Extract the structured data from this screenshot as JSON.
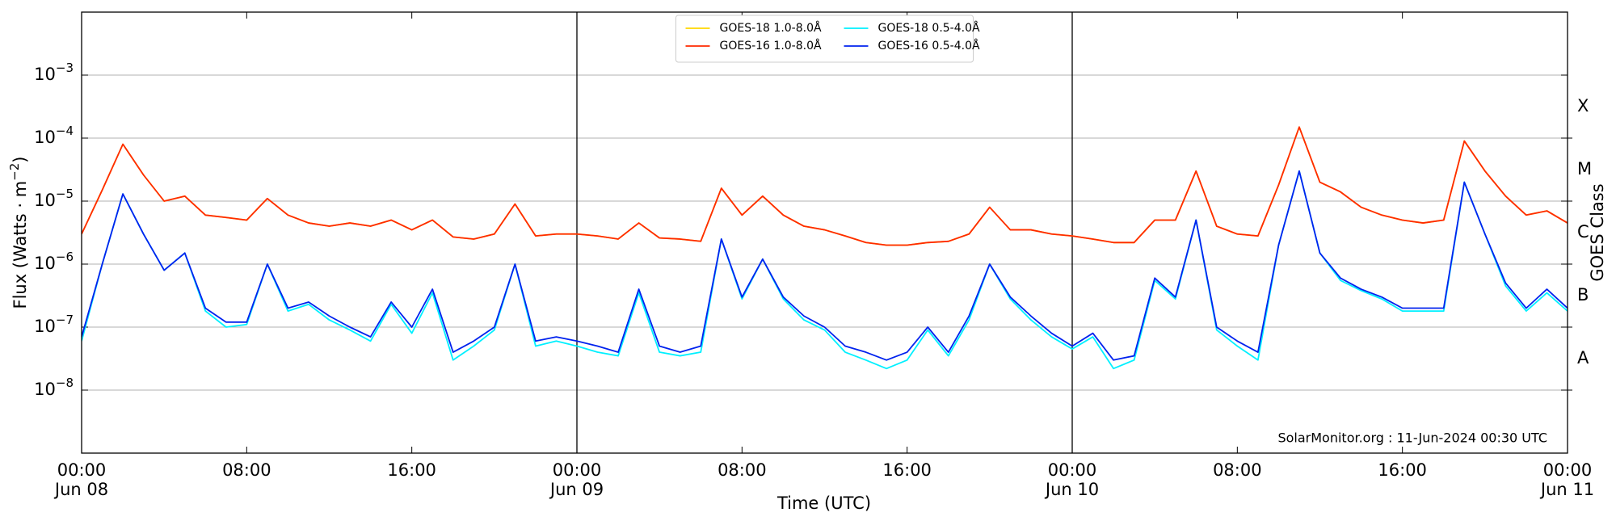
{
  "chart_data": {
    "type": "line",
    "ylabel": {
      "text": "Flux (Watts · m",
      "exponent": "−2",
      "suffix": ")"
    },
    "xlabel": "Time (UTC)",
    "y2label": "GOES Class",
    "annotation": "SolarMonitor.org : 11-Jun-2024 00:30 UTC",
    "ylog": true,
    "grid": true,
    "legend_position": "upper center",
    "legend_columns": 2,
    "ylim": [
      1e-09,
      0.01
    ],
    "yticks": [
      {
        "value": 1e-08,
        "label": {
          "base": "10",
          "exponent": "−8"
        }
      },
      {
        "value": 1e-07,
        "label": {
          "base": "10",
          "exponent": "−7"
        }
      },
      {
        "value": 1e-06,
        "label": {
          "base": "10",
          "exponent": "−6"
        }
      },
      {
        "value": 1e-05,
        "label": {
          "base": "10",
          "exponent": "−5"
        }
      },
      {
        "value": 0.0001,
        "label": {
          "base": "10",
          "exponent": "−4"
        }
      },
      {
        "value": 0.001,
        "label": {
          "base": "10",
          "exponent": "−3"
        }
      }
    ],
    "y2lim": [
      1e-09,
      0.01
    ],
    "y2ticks": [
      {
        "value": 1e-08,
        "label": "A"
      },
      {
        "value": 1e-07,
        "label": "B"
      },
      {
        "value": 1e-06,
        "label": "C"
      },
      {
        "value": 1e-05,
        "label": "M"
      },
      {
        "value": 0.0001,
        "label": "X"
      }
    ],
    "xlim": [
      "Jun 08 00:00",
      "Jun 11 00:00"
    ],
    "xticks": [
      {
        "value": "Jun 08 00:00",
        "label": [
          "00:00",
          "Jun 08"
        ]
      },
      {
        "value": "Jun 08 08:00",
        "label": [
          "08:00"
        ]
      },
      {
        "value": "Jun 08 16:00",
        "label": [
          "16:00"
        ]
      },
      {
        "value": "Jun 09 00:00",
        "label": [
          "00:00",
          "Jun 09"
        ]
      },
      {
        "value": "Jun 09 08:00",
        "label": [
          "08:00"
        ]
      },
      {
        "value": "Jun 09 16:00",
        "label": [
          "16:00"
        ]
      },
      {
        "value": "Jun 10 00:00",
        "label": [
          "00:00",
          "Jun 10"
        ]
      },
      {
        "value": "Jun 10 08:00",
        "label": [
          "08:00"
        ]
      },
      {
        "value": "Jun 10 16:00",
        "label": [
          "16:00"
        ]
      },
      {
        "value": "Jun 11 00:00",
        "label": [
          "00:00",
          "Jun 11"
        ]
      }
    ],
    "x": [
      "Jun 08 00:00",
      "Jun 08 01:00",
      "Jun 08 02:00",
      "Jun 08 03:00",
      "Jun 08 04:00",
      "Jun 08 05:00",
      "Jun 08 06:00",
      "Jun 08 07:00",
      "Jun 08 08:00",
      "Jun 08 09:00",
      "Jun 08 10:00",
      "Jun 08 11:00",
      "Jun 08 12:00",
      "Jun 08 13:00",
      "Jun 08 14:00",
      "Jun 08 15:00",
      "Jun 08 16:00",
      "Jun 08 17:00",
      "Jun 08 18:00",
      "Jun 08 19:00",
      "Jun 08 20:00",
      "Jun 08 21:00",
      "Jun 08 22:00",
      "Jun 08 23:00",
      "Jun 09 00:00",
      "Jun 09 01:00",
      "Jun 09 02:00",
      "Jun 09 03:00",
      "Jun 09 04:00",
      "Jun 09 05:00",
      "Jun 09 06:00",
      "Jun 09 07:00",
      "Jun 09 08:00",
      "Jun 09 09:00",
      "Jun 09 10:00",
      "Jun 09 11:00",
      "Jun 09 12:00",
      "Jun 09 13:00",
      "Jun 09 14:00",
      "Jun 09 15:00",
      "Jun 09 16:00",
      "Jun 09 17:00",
      "Jun 09 18:00",
      "Jun 09 19:00",
      "Jun 09 20:00",
      "Jun 09 21:00",
      "Jun 09 22:00",
      "Jun 09 23:00",
      "Jun 10 00:00",
      "Jun 10 01:00",
      "Jun 10 02:00",
      "Jun 10 03:00",
      "Jun 10 04:00",
      "Jun 10 05:00",
      "Jun 10 06:00",
      "Jun 10 07:00",
      "Jun 10 08:00",
      "Jun 10 09:00",
      "Jun 10 10:00",
      "Jun 10 11:00",
      "Jun 10 12:00",
      "Jun 10 13:00",
      "Jun 10 14:00",
      "Jun 10 15:00",
      "Jun 10 16:00",
      "Jun 10 17:00",
      "Jun 10 18:00",
      "Jun 10 19:00",
      "Jun 10 20:00",
      "Jun 10 21:00",
      "Jun 10 22:00",
      "Jun 10 23:00",
      "Jun 11 00:00"
    ],
    "series": [
      {
        "name": "GOES-18 1.0-8.0Å",
        "color": "#ffd700",
        "values": [
          3e-06,
          1.5e-05,
          8e-05,
          2.6e-05,
          1e-05,
          1.2e-05,
          6e-06,
          5.5e-06,
          5e-06,
          1.1e-05,
          6e-06,
          4.5e-06,
          4e-06,
          4.5e-06,
          4e-06,
          5e-06,
          3.5e-06,
          5e-06,
          2.7e-06,
          2.5e-06,
          3e-06,
          9e-06,
          2.8e-06,
          3e-06,
          3e-06,
          2.8e-06,
          2.5e-06,
          4.5e-06,
          2.6e-06,
          2.5e-06,
          2.3e-06,
          1.6e-05,
          6e-06,
          1.2e-05,
          6e-06,
          4e-06,
          3.5e-06,
          2.8e-06,
          2.2e-06,
          2e-06,
          2e-06,
          2.2e-06,
          2.3e-06,
          3e-06,
          8e-06,
          3.5e-06,
          3.5e-06,
          3e-06,
          2.8e-06,
          2.5e-06,
          2.2e-06,
          2.2e-06,
          5e-06,
          5e-06,
          3e-05,
          4e-06,
          3e-06,
          2.8e-06,
          1.8e-05,
          0.00015,
          2e-05,
          1.4e-05,
          8e-06,
          6e-06,
          5e-06,
          4.5e-06,
          5e-06,
          9e-05,
          3e-05,
          1.2e-05,
          6e-06,
          7e-06,
          4.5e-06
        ]
      },
      {
        "name": "GOES-16 1.0-8.0Å",
        "color": "#ff2a00",
        "values": [
          3e-06,
          1.5e-05,
          8e-05,
          2.6e-05,
          1e-05,
          1.2e-05,
          6e-06,
          5.5e-06,
          5e-06,
          1.1e-05,
          6e-06,
          4.5e-06,
          4e-06,
          4.5e-06,
          4e-06,
          5e-06,
          3.5e-06,
          5e-06,
          2.7e-06,
          2.5e-06,
          3e-06,
          9e-06,
          2.8e-06,
          3e-06,
          3e-06,
          2.8e-06,
          2.5e-06,
          4.5e-06,
          2.6e-06,
          2.5e-06,
          2.3e-06,
          1.6e-05,
          6e-06,
          1.2e-05,
          6e-06,
          4e-06,
          3.5e-06,
          2.8e-06,
          2.2e-06,
          2e-06,
          2e-06,
          2.2e-06,
          2.3e-06,
          3e-06,
          8e-06,
          3.5e-06,
          3.5e-06,
          3e-06,
          2.8e-06,
          2.5e-06,
          2.2e-06,
          2.2e-06,
          5e-06,
          5e-06,
          3e-05,
          4e-06,
          3e-06,
          2.8e-06,
          1.8e-05,
          0.00015,
          2e-05,
          1.4e-05,
          8e-06,
          6e-06,
          5e-06,
          4.5e-06,
          5e-06,
          9e-05,
          3e-05,
          1.2e-05,
          6e-06,
          7e-06,
          4.5e-06
        ]
      },
      {
        "name": "GOES-18 0.5-4.0Å",
        "color": "#00f0ff",
        "values": [
          6e-08,
          1e-06,
          1.3e-05,
          3e-06,
          8e-07,
          1.5e-06,
          1.8e-07,
          1e-07,
          1.1e-07,
          1e-06,
          1.8e-07,
          2.3e-07,
          1.3e-07,
          9e-08,
          6e-08,
          2.3e-07,
          8e-08,
          3.5e-07,
          3e-08,
          5e-08,
          9e-08,
          1e-06,
          5e-08,
          6e-08,
          5e-08,
          4e-08,
          3.5e-08,
          3.5e-07,
          4e-08,
          3.5e-08,
          4e-08,
          2.5e-06,
          2.8e-07,
          1.2e-06,
          2.8e-07,
          1.3e-07,
          9e-08,
          4e-08,
          3e-08,
          2.2e-08,
          3e-08,
          9e-08,
          3.5e-08,
          1.3e-07,
          1e-06,
          2.8e-07,
          1.3e-07,
          7e-08,
          4.5e-08,
          7e-08,
          2.2e-08,
          3e-08,
          5.5e-07,
          2.8e-07,
          5e-06,
          9e-08,
          5e-08,
          3e-08,
          2e-06,
          3e-05,
          1.5e-06,
          5.5e-07,
          3.8e-07,
          2.8e-07,
          1.8e-07,
          1.8e-07,
          1.8e-07,
          2e-05,
          3e-06,
          4.5e-07,
          1.8e-07,
          3.5e-07,
          1.8e-07
        ]
      },
      {
        "name": "GOES-16 0.5-4.0Å",
        "color": "#0022ee",
        "values": [
          7e-08,
          1e-06,
          1.3e-05,
          3e-06,
          8e-07,
          1.5e-06,
          2e-07,
          1.2e-07,
          1.2e-07,
          1e-06,
          2e-07,
          2.5e-07,
          1.5e-07,
          1e-07,
          7e-08,
          2.5e-07,
          1e-07,
          4e-07,
          4e-08,
          6e-08,
          1e-07,
          1e-06,
          6e-08,
          7e-08,
          6e-08,
          5e-08,
          4e-08,
          4e-07,
          5e-08,
          4e-08,
          5e-08,
          2.5e-06,
          3e-07,
          1.2e-06,
          3e-07,
          1.5e-07,
          1e-07,
          5e-08,
          4e-08,
          3e-08,
          4e-08,
          1e-07,
          4e-08,
          1.5e-07,
          1e-06,
          3e-07,
          1.5e-07,
          8e-08,
          5e-08,
          8e-08,
          3e-08,
          3.5e-08,
          6e-07,
          3e-07,
          5e-06,
          1e-07,
          6e-08,
          4e-08,
          2e-06,
          3e-05,
          1.5e-06,
          6e-07,
          4e-07,
          3e-07,
          2e-07,
          2e-07,
          2e-07,
          2e-05,
          3e-06,
          5e-07,
          2e-07,
          4e-07,
          2e-07
        ]
      }
    ]
  }
}
